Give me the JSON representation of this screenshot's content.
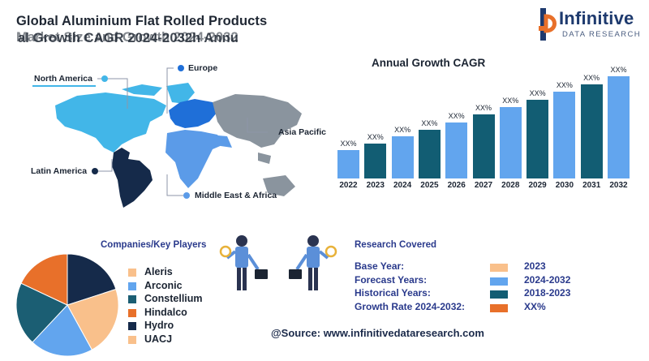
{
  "header": {
    "title_line_1": "Global Aluminium Flat Rolled Products",
    "title_line_2": "Market Size and Growth 2024-2032",
    "title_line_2_overlap": "al Growth CAGR 2024-2032h Annu"
  },
  "logo": {
    "name": "Infinitive",
    "tagline": "DATA RESEARCH",
    "color": "#1e3a6e",
    "accent": "#e8702a"
  },
  "map": {
    "regions": [
      {
        "label": "North America",
        "color": "#42b6e8"
      },
      {
        "label": "Europe",
        "color": "#1f6fd8"
      },
      {
        "label": "Asia Pacific",
        "color": "#8a949e"
      },
      {
        "label": "Latin America",
        "color": "#152a4a"
      },
      {
        "label": "Middle East & Africa",
        "color": "#5b9be8"
      }
    ]
  },
  "chart_data": {
    "type": "bar",
    "title": "Annual Growth CAGR",
    "categories": [
      "2022",
      "2023",
      "2024",
      "2025",
      "2026",
      "2027",
      "2028",
      "2029",
      "2030",
      "2031",
      "2032"
    ],
    "values": [
      1.0,
      1.25,
      1.5,
      1.75,
      2.0,
      2.3,
      2.55,
      2.8,
      3.1,
      3.35,
      3.65
    ],
    "value_labels": [
      "XX%",
      "XX%",
      "XX%",
      "XX%",
      "XX%",
      "XX%",
      "XX%",
      "XX%",
      "XX%",
      "XX%",
      "XX%"
    ],
    "colors": [
      "#62a5ee",
      "#125d73",
      "#62a5ee",
      "#125d73",
      "#62a5ee",
      "#125d73",
      "#62a5ee",
      "#125d73",
      "#62a5ee",
      "#125d73",
      "#62a5ee"
    ],
    "xlabel": "",
    "ylabel": "",
    "grid": false
  },
  "companies": {
    "title": "Companies/Key Players",
    "items": [
      {
        "name": "Aleris",
        "color": "#f9c08b",
        "share": 0.22
      },
      {
        "name": "Arconic",
        "color": "#62a5ee",
        "share": 0.2
      },
      {
        "name": "Constellium",
        "color": "#1b5e73",
        "share": 0.2
      },
      {
        "name": "Hindalco",
        "color": "#e8702a",
        "share": 0.18
      },
      {
        "name": "Hydro",
        "color": "#152a4a",
        "share": 0.2
      },
      {
        "name": "UACJ",
        "color": "#f9c08b",
        "share": 0
      }
    ]
  },
  "research": {
    "title": "Research Covered",
    "rows": [
      {
        "label": "Base Year:",
        "value": "2023",
        "color": "#f9c08b"
      },
      {
        "label": "Forecast Years:",
        "value": "2024-2032",
        "color": "#62a5ee"
      },
      {
        "label": "Historical Years:",
        "value": "2018-2023",
        "color": "#125d73"
      },
      {
        "label": "Growth Rate 2024-2032:",
        "value": "XX%",
        "color": "#e8702a"
      }
    ]
  },
  "source": "@Source: www.infinitivedataresearch.com"
}
